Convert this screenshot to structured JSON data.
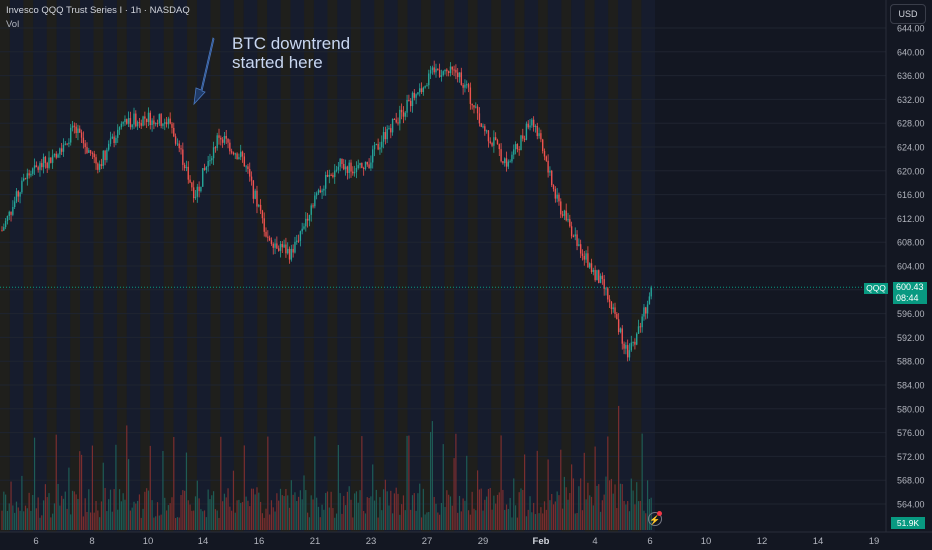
{
  "header": {
    "title": "Invesco QQQ Trust Series I · 1h · NASDAQ",
    "indicator": "Vol"
  },
  "currency_button": "USD",
  "annotation": {
    "text": "BTC downtrend\nstarted here"
  },
  "price_tag": {
    "symbol": "QQQ",
    "price": "600.43",
    "countdown": "08:44"
  },
  "volume_tag": "51.9K",
  "colors": {
    "background": "#131722",
    "up": "#26a69a",
    "down": "#ef5350",
    "grid": "#1f2430",
    "accent": "#089981",
    "annotation": "#5b86c8"
  },
  "chart_data": {
    "type": "candlestick",
    "y_ticks": [
      "644.00",
      "640.00",
      "636.00",
      "632.00",
      "628.00",
      "624.00",
      "620.00",
      "616.00",
      "612.00",
      "608.00",
      "604.00",
      "600.00",
      "596.00",
      "592.00",
      "588.00",
      "584.00",
      "580.00",
      "576.00",
      "572.00",
      "568.00",
      "564.00"
    ],
    "ylim": [
      562,
      646
    ],
    "x_ticks": [
      "6",
      "8",
      "10",
      "12",
      "14",
      "16",
      "19",
      "21",
      "23",
      "27",
      "29",
      "Feb",
      "4",
      "6",
      "10",
      "12",
      "14",
      "19"
    ],
    "last_price": 600.43,
    "last_volume": "51.9K",
    "price_path": [
      {
        "x": "Jan 5",
        "y": 610
      },
      {
        "x": "Jan 6",
        "y": 619
      },
      {
        "x": "Jan 7",
        "y": 622
      },
      {
        "x": "Jan 8",
        "y": 627
      },
      {
        "x": "Jan 9",
        "y": 621
      },
      {
        "x": "Jan 10",
        "y": 628
      },
      {
        "x": "Jan 12",
        "y": 629
      },
      {
        "x": "Jan 13",
        "y": 628
      },
      {
        "x": "Jan 14",
        "y": 616
      },
      {
        "x": "Jan 15",
        "y": 626
      },
      {
        "x": "Jan 16",
        "y": 622
      },
      {
        "x": "Jan 19",
        "y": 609
      },
      {
        "x": "Jan 20",
        "y": 606
      },
      {
        "x": "Jan 21",
        "y": 616
      },
      {
        "x": "Jan 22",
        "y": 621
      },
      {
        "x": "Jan 23",
        "y": 620
      },
      {
        "x": "Jan 26",
        "y": 627
      },
      {
        "x": "Jan 27",
        "y": 632
      },
      {
        "x": "Jan 28",
        "y": 637
      },
      {
        "x": "Jan 29",
        "y": 636
      },
      {
        "x": "Jan 30",
        "y": 627
      },
      {
        "x": "Jan 31",
        "y": 621
      },
      {
        "x": "Feb 2",
        "y": 629
      },
      {
        "x": "Feb 3",
        "y": 615
      },
      {
        "x": "Feb 4",
        "y": 607
      },
      {
        "x": "Feb 5",
        "y": 600
      },
      {
        "x": "Feb 6",
        "y": 589
      },
      {
        "x": "Feb 6 close",
        "y": 600.43
      }
    ]
  }
}
